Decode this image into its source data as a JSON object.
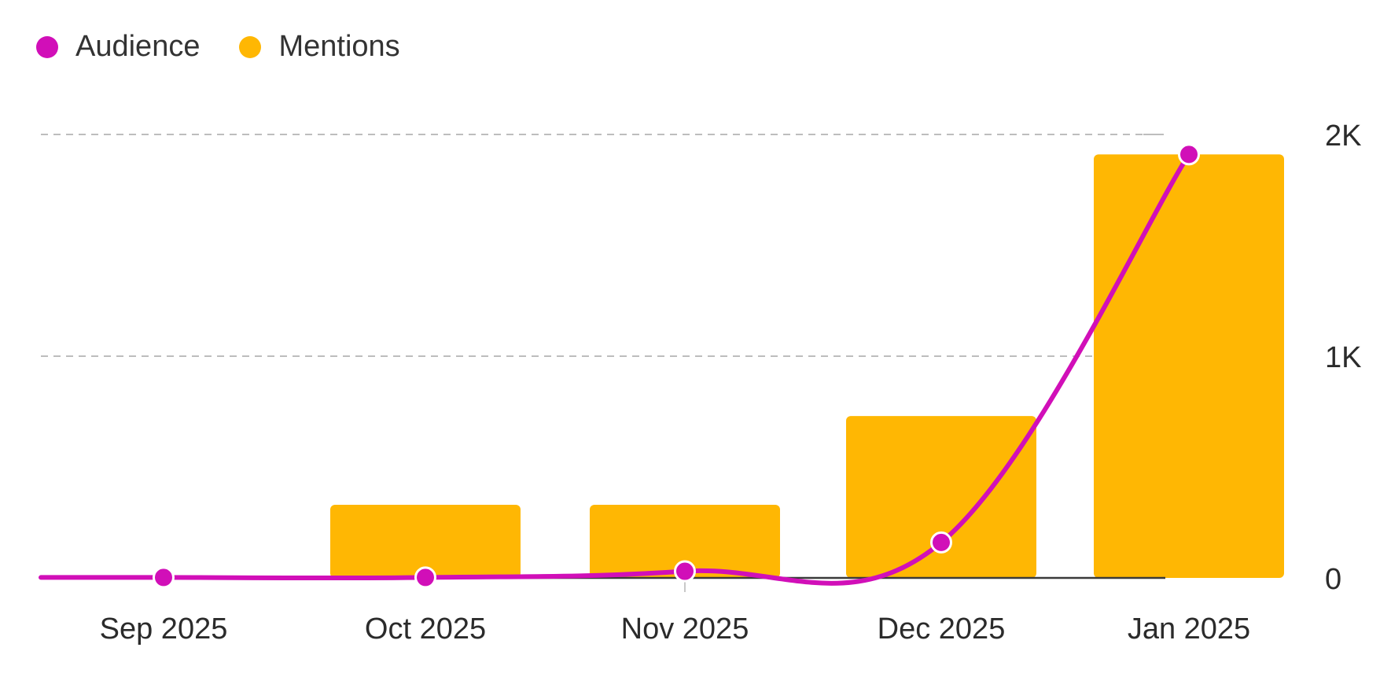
{
  "chart_data": {
    "type": "bar",
    "categories": [
      "Sep 2025",
      "Oct 2025",
      "Nov 2025",
      "Dec 2025",
      "Jan 2025"
    ],
    "series": [
      {
        "name": "Mentions",
        "type": "bar",
        "color": "#FFB703",
        "values": [
          0,
          330,
          330,
          730,
          1910
        ]
      },
      {
        "name": "Audience",
        "type": "line",
        "color": "#D10FB8",
        "values": [
          2,
          2,
          30,
          160,
          1910
        ]
      }
    ],
    "yaxis": {
      "position": "right",
      "min": 0,
      "max": 2000,
      "ticks": [
        0,
        1000,
        2000
      ],
      "tick_labels": [
        "0",
        "1K",
        "2K"
      ]
    },
    "grid": {
      "horizontal": true,
      "style": "dashed"
    },
    "legend": {
      "position": "top-left"
    },
    "title": "",
    "xlabel": "",
    "ylabel": ""
  }
}
